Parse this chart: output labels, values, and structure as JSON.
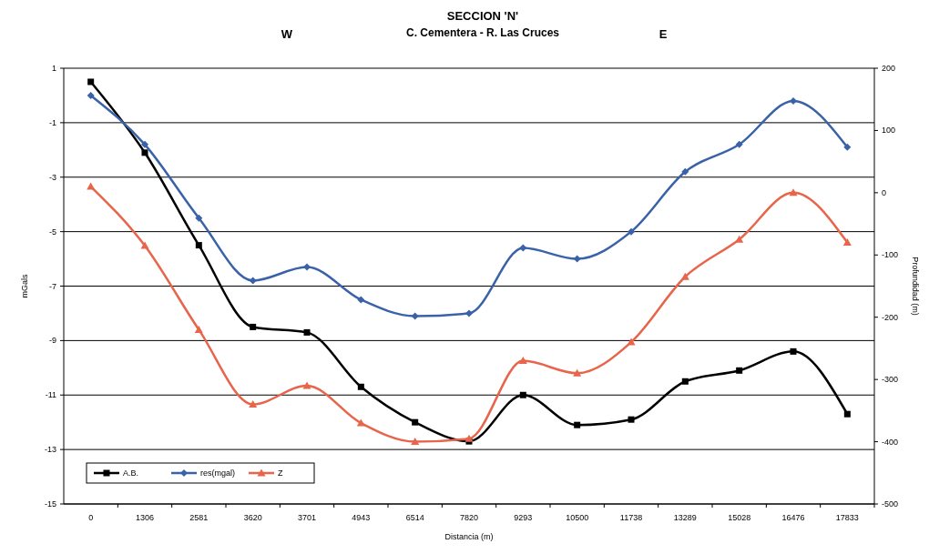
{
  "chart_data": {
    "type": "line",
    "title": "SECCION 'N'",
    "subtitle": "C. Cementera - R. Las Cruces",
    "annotations": [
      "W",
      "E"
    ],
    "xlabel": "Distancia (m)",
    "ylabel": "mGals",
    "y2label": "Profundidad (m)",
    "categories": [
      "0",
      "1306",
      "2581",
      "3620",
      "3701",
      "4943",
      "6514",
      "7820",
      "9293",
      "10500",
      "11738",
      "13289",
      "15028",
      "16476",
      "17833"
    ],
    "series": [
      {
        "name": "A.B.",
        "color": "#000000",
        "marker": "square",
        "values": [
          0.5,
          -2.1,
          -5.5,
          -8.5,
          -8.7,
          -10.7,
          -12.0,
          -12.7,
          -11.0,
          -12.1,
          -11.9,
          -10.5,
          -10.1,
          -9.4,
          -11.7
        ]
      },
      {
        "name": "res(mgal)",
        "color": "#3a62a8",
        "marker": "diamond",
        "values": [
          0.0,
          -1.8,
          -4.5,
          -6.8,
          -6.3,
          -7.5,
          -8.1,
          -8.0,
          -5.6,
          -6.0,
          -5.0,
          -2.8,
          -1.8,
          -0.2,
          -1.9
        ]
      },
      {
        "name": "Z",
        "color": "#e8644a",
        "marker": "triangle",
        "axis": "y2",
        "values": [
          10,
          -85,
          -220,
          -340,
          -310,
          -370,
          -400,
          -395,
          -270,
          -290,
          -240,
          -135,
          -75,
          0,
          -80
        ]
      }
    ],
    "ylim": [
      -15,
      1
    ],
    "yticks": [
      -15,
      -13,
      -11,
      -9,
      -7,
      -5,
      -3,
      -1,
      1
    ],
    "y2lim": [
      -500,
      200
    ],
    "y2ticks": [
      -500,
      -400,
      -300,
      -200,
      -100,
      0,
      100,
      200
    ],
    "grid": "y",
    "legend": "bottom left",
    "line_style": "solid"
  }
}
